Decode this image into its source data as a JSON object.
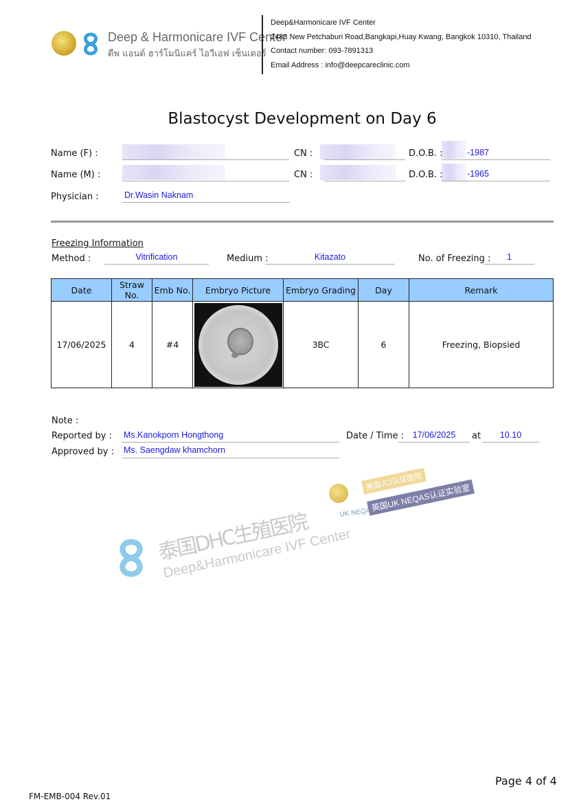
{
  "header": {
    "logo_en": "Deep & Harmonicare IVF Center",
    "logo_th": "ดีพ แอนด์ ฮาร์โมนิแคร์ ไอวีเอฟ เซ็นเตอร์",
    "clinic_name": "Deep&Harmonicare IVF Center",
    "address": "2483 New Petchaburi Road,Bangkapi,Huay Kwang, Bangkok 10310, Thailand",
    "contact": "Contact number: 093-7891313",
    "email": "Email Address : info@deepcareclinic.com"
  },
  "title": "Blastocyst Development on Day 6",
  "patient": {
    "name_f_label": "Name (F) :",
    "name_m_label": "Name (M) :",
    "cn_label": "CN :",
    "dob_label": "D.O.B. :",
    "dob_f": "-1987",
    "dob_m": "-1965",
    "physician_label": "Physician :",
    "physician": "Dr.Wasin Naknam"
  },
  "freezing": {
    "heading": "Freezing Information",
    "method_label": "Method :",
    "method": "Vitrification",
    "medium_label": "Medium :",
    "medium": "Kitazato",
    "count_label": "No. of Freezing :",
    "count": "1"
  },
  "table": {
    "headers": [
      "Date",
      "Straw No.",
      "Emb No.",
      "Embryo Picture",
      "Embryo Grading",
      "Day",
      "Remark"
    ],
    "rows": [
      {
        "date": "17/06/2025",
        "straw": "4",
        "emb": "#4",
        "grading": "3BC",
        "day": "6",
        "remark": "Freezing, Biopsied"
      }
    ]
  },
  "footer_info": {
    "note_label": "Note :",
    "reported_label": "Reported by :",
    "reported": "Ms.Kanokporn Hongthong",
    "approved_label": "Approved by :",
    "approved": "Ms. Saengdaw khamchorn",
    "datetime_label": "Date / Time :",
    "date": "17/06/2025",
    "at_label": "at",
    "time": "10.10"
  },
  "watermark": {
    "cn": "泰国DHC生殖医院",
    "en": "Deep&Harmonicare IVF Center",
    "ukneqas": "UK NEQAS",
    "badge_jci": "美国JCI认证医院",
    "badge_neqas": "英国UK NEQAS认证实验室"
  },
  "form_code": "FM-EMB-004 Rev.01",
  "page": "Page 4 of 4"
}
